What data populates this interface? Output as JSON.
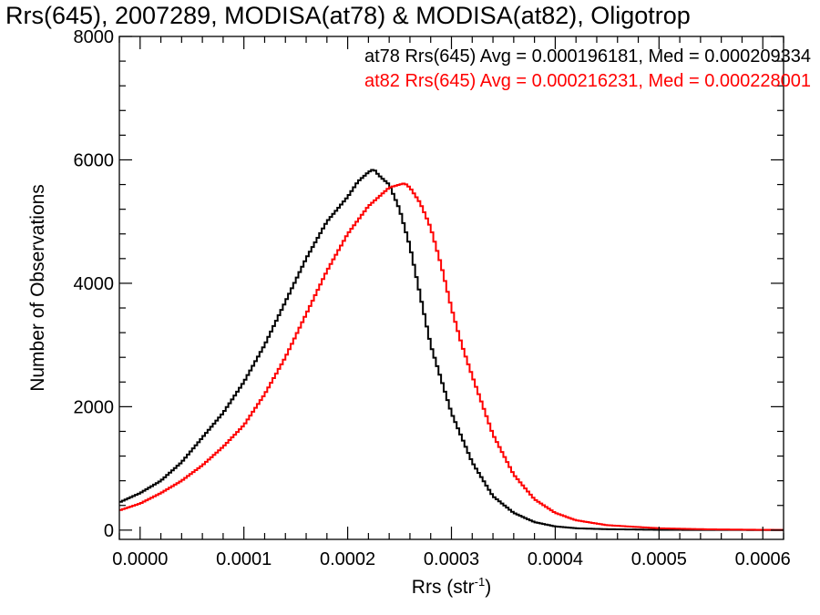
{
  "chart_data": {
    "type": "line",
    "title": "Rrs(645), 2007289, MODISA(at78) & MODISA(at82), Oligotrop",
    "xlabel": "Rrs (str",
    "xlabel_sup": "-1",
    "xlabel_close": ")",
    "ylabel": "Number of Observations",
    "xlim": [
      -2e-05,
      0.00062
    ],
    "ylim": [
      -150,
      8000
    ],
    "xticks": [
      0.0,
      0.0001,
      0.0002,
      0.0003,
      0.0004,
      0.0005,
      0.0006
    ],
    "xtick_labels": [
      "0.0000",
      "0.0001",
      "0.0002",
      "0.0003",
      "0.0004",
      "0.0005",
      "0.0006"
    ],
    "yticks": [
      0,
      2000,
      4000,
      6000,
      8000
    ],
    "ytick_labels": [
      "0",
      "2000",
      "4000",
      "6000",
      "8000"
    ],
    "grid": false,
    "legend_placement": "top-right",
    "series": [
      {
        "name": "at78",
        "label": "at78 Rrs(645) Avg = 0.000196181, Med = 0.000209334",
        "color": "#000000",
        "x": [
          -2e-05,
          0.0,
          2e-05,
          4e-05,
          6e-05,
          8e-05,
          0.0001,
          0.00012,
          0.00014,
          0.00016,
          0.00018,
          0.0002,
          0.00021,
          0.00022,
          0.000225,
          0.00023,
          0.00024,
          0.00025,
          0.00026,
          0.00027,
          0.00028,
          0.0003,
          0.00032,
          0.00034,
          0.00036,
          0.00038,
          0.0004,
          0.00042,
          0.00045,
          0.0005,
          0.00055,
          0.0006,
          0.00062
        ],
        "values": [
          450,
          600,
          800,
          1100,
          1500,
          1900,
          2400,
          3000,
          3700,
          4400,
          5000,
          5400,
          5650,
          5800,
          5850,
          5750,
          5600,
          5200,
          4600,
          3800,
          3000,
          1900,
          1100,
          550,
          280,
          130,
          60,
          30,
          15,
          5,
          3,
          2,
          2
        ]
      },
      {
        "name": "at82",
        "label": "at82 Rrs(645) Avg = 0.000216231, Med = 0.000228001",
        "color": "#ff0000",
        "x": [
          -2e-05,
          0.0,
          2e-05,
          4e-05,
          6e-05,
          8e-05,
          0.0001,
          0.00012,
          0.00014,
          0.00016,
          0.00018,
          0.0002,
          0.00022,
          0.00024,
          0.00025,
          0.000255,
          0.00026,
          0.00027,
          0.00028,
          0.00029,
          0.0003,
          0.00031,
          0.00032,
          0.00034,
          0.00036,
          0.00038,
          0.0004,
          0.00042,
          0.00045,
          0.0005,
          0.00055,
          0.0006,
          0.00062
        ],
        "values": [
          320,
          430,
          600,
          800,
          1050,
          1350,
          1700,
          2200,
          2800,
          3500,
          4200,
          4800,
          5250,
          5550,
          5600,
          5620,
          5550,
          5300,
          4900,
          4300,
          3600,
          3000,
          2500,
          1550,
          900,
          500,
          280,
          160,
          80,
          30,
          12,
          5,
          3
        ]
      }
    ]
  }
}
